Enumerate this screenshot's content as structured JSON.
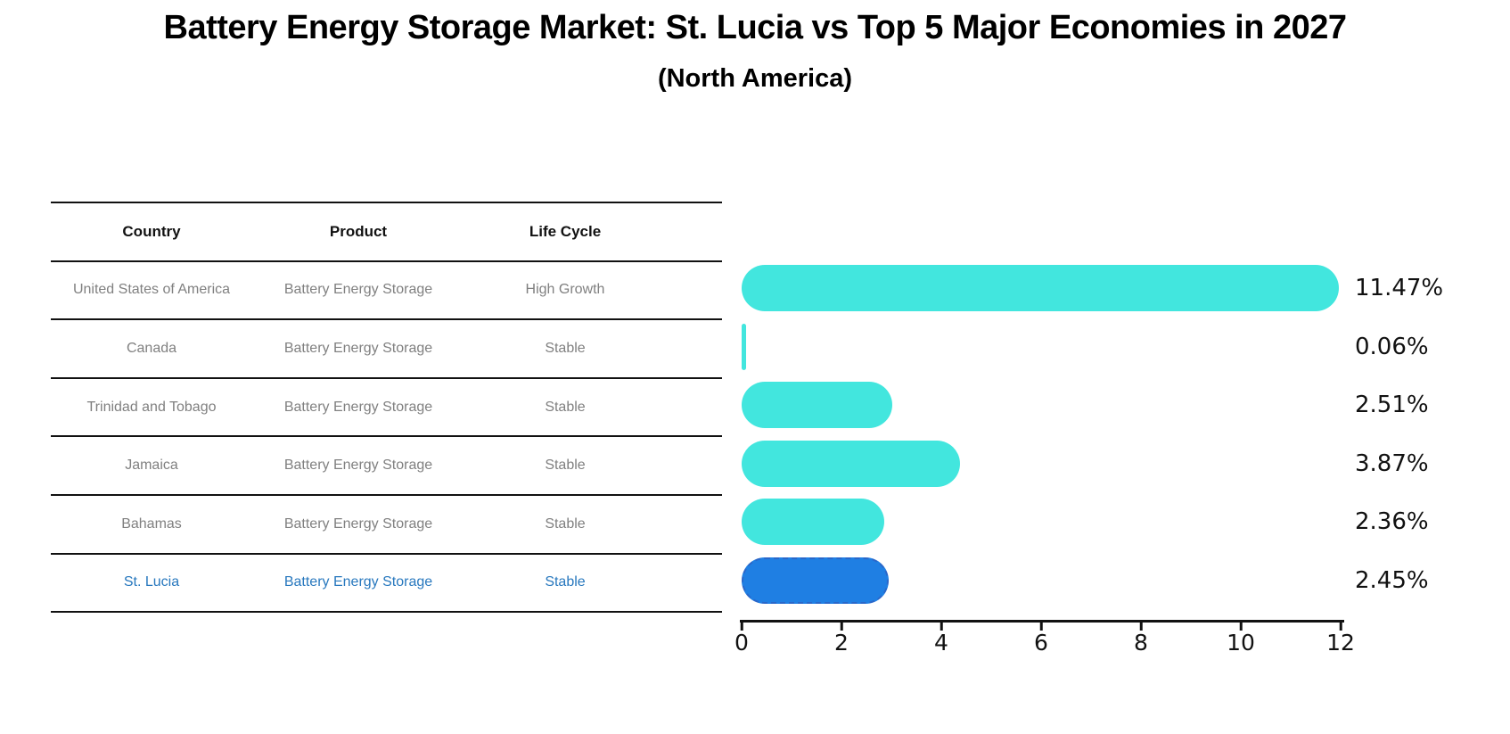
{
  "title": "Battery Energy Storage Market: St. Lucia vs Top 5 Major Economies in 2027",
  "subtitle": "(North America)",
  "table": {
    "headers": {
      "country": "Country",
      "product": "Product",
      "life_cycle": "Life Cycle"
    }
  },
  "rows": [
    {
      "country": "United States of America",
      "product": "Battery Energy Storage",
      "life_cycle": "High Growth",
      "value": 11.47,
      "label": "11.47%",
      "highlight": false
    },
    {
      "country": "Canada",
      "product": "Battery Energy Storage",
      "life_cycle": "Stable",
      "value": 0.06,
      "label": "0.06%",
      "highlight": false
    },
    {
      "country": "Trinidad and Tobago",
      "product": "Battery Energy Storage",
      "life_cycle": "Stable",
      "value": 2.51,
      "label": "2.51%",
      "highlight": false
    },
    {
      "country": "Jamaica",
      "product": "Battery Energy Storage",
      "life_cycle": "Stable",
      "value": 3.87,
      "label": "3.87%",
      "highlight": false
    },
    {
      "country": "Bahamas",
      "product": "Battery Energy Storage",
      "life_cycle": "Stable",
      "value": 2.36,
      "label": "2.36%",
      "highlight": false
    },
    {
      "country": "St. Lucia",
      "product": "Battery Energy Storage",
      "life_cycle": "Stable",
      "value": 2.45,
      "label": "2.45%",
      "highlight": true
    }
  ],
  "chart_data": {
    "type": "bar",
    "orientation": "horizontal",
    "title": "Battery Energy Storage Market: St. Lucia vs Top 5 Major Economies in 2027 (North America)",
    "categories": [
      "United States of America",
      "Canada",
      "Trinidad and Tobago",
      "Jamaica",
      "Bahamas",
      "St. Lucia"
    ],
    "values": [
      11.47,
      0.06,
      2.51,
      3.87,
      2.36,
      2.45
    ],
    "value_labels": [
      "11.47%",
      "0.06%",
      "2.51%",
      "3.87%",
      "2.36%",
      "2.45%"
    ],
    "xlabel": "",
    "ylabel": "",
    "xlim": [
      0,
      12
    ],
    "xticks": [
      0,
      2,
      4,
      6,
      8,
      10,
      12
    ],
    "grid": false,
    "legend": false,
    "highlight_index": 5
  },
  "colors": {
    "bar": "#42E6DE",
    "highlight_bar": "#1F7FE3",
    "highlight_border": "#2A67C9",
    "highlight_text": "#2878BE",
    "table_text": "#808080",
    "axis_text": "#111111"
  }
}
